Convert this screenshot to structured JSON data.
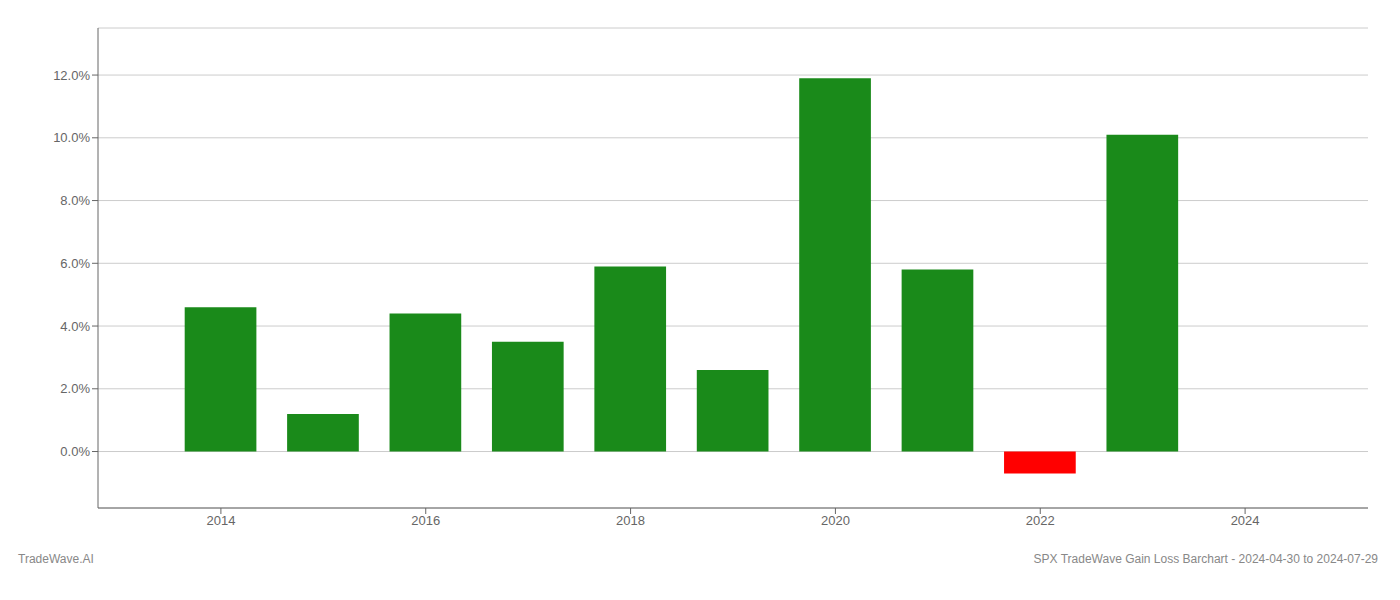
{
  "chart_data": {
    "type": "bar",
    "x": [
      2014,
      2015,
      2016,
      2017,
      2018,
      2019,
      2020,
      2021,
      2022,
      2023
    ],
    "values": [
      0.046,
      0.012,
      0.044,
      0.035,
      0.059,
      0.026,
      0.119,
      0.058,
      -0.007,
      0.101
    ],
    "colors": [
      "#1a8a1a",
      "#1a8a1a",
      "#1a8a1a",
      "#1a8a1a",
      "#1a8a1a",
      "#1a8a1a",
      "#1a8a1a",
      "#1a8a1a",
      "#ff0000",
      "#1a8a1a"
    ],
    "xlim": [
      2012.8,
      2025.2
    ],
    "xticks": [
      2014,
      2016,
      2018,
      2020,
      2022,
      2024
    ],
    "ylim": [
      -0.018,
      0.135
    ],
    "yticks": [
      {
        "value": 0.0,
        "label": "0.0%"
      },
      {
        "value": 0.02,
        "label": "2.0%"
      },
      {
        "value": 0.04,
        "label": "4.0%"
      },
      {
        "value": 0.06,
        "label": "6.0%"
      },
      {
        "value": 0.08,
        "label": "8.0%"
      },
      {
        "value": 0.1,
        "label": "10.0%"
      },
      {
        "value": 0.12,
        "label": "12.0%"
      }
    ],
    "grid": true,
    "annotations": [
      "TradeWave.AI",
      "SPX TradeWave Gain Loss Barchart - 2024-04-30 to 2024-07-29"
    ]
  }
}
